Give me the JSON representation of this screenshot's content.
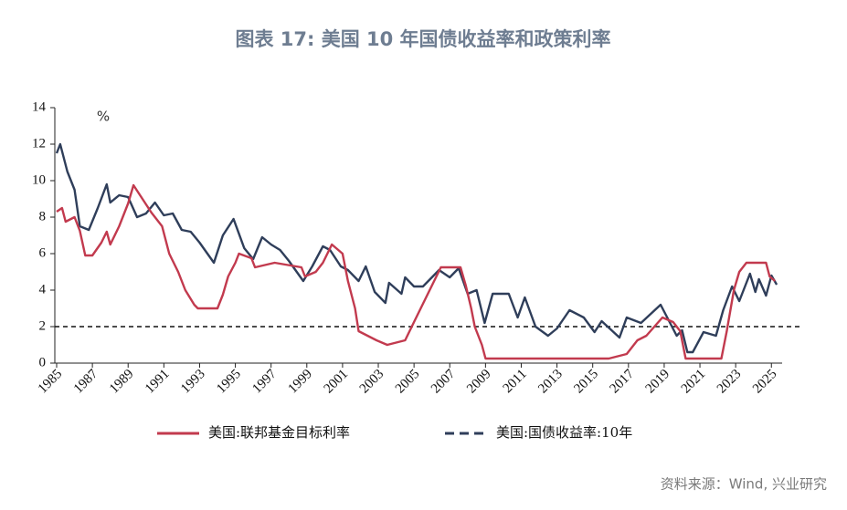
{
  "chart_data": {
    "type": "line",
    "title": "图表 17: 美国 10 年国债收益率和政策利率",
    "y_unit": "%",
    "source": "资料来源：Wind, 兴业研究",
    "xlim": [
      1985,
      2025.6
    ],
    "xticks": [
      1985,
      1987,
      1989,
      1991,
      1993,
      1995,
      1997,
      1999,
      2001,
      2003,
      2005,
      2007,
      2009,
      2011,
      2013,
      2015,
      2017,
      2019,
      2021,
      2023,
      2025
    ],
    "ylim": [
      0,
      14
    ],
    "yticks": [
      0,
      2,
      4,
      6,
      8,
      10,
      12,
      14
    ],
    "reference_line": 2,
    "series": [
      {
        "name": "美国:联邦基金目标利率",
        "color": "#c23a4e",
        "style": "solid",
        "x": [
          1985,
          1985.3,
          1985.5,
          1986,
          1986.3,
          1986.6,
          1987,
          1987.5,
          1987.8,
          1988,
          1988.5,
          1989,
          1989.3,
          1989.8,
          1990.3,
          1990.9,
          1991.3,
          1991.8,
          1992.2,
          1992.7,
          1992.9,
          1994,
          1994.3,
          1994.6,
          1995,
          1995.2,
          1995.9,
          1996.1,
          1997.2,
          1998.7,
          1998.9,
          1999.5,
          1999.9,
          2000.4,
          2001,
          2001.3,
          2001.7,
          2001.9,
          2002.9,
          2003.5,
          2004.5,
          2005,
          2005.5,
          2006,
          2006.5,
          2007.6,
          2007.9,
          2008.2,
          2008.4,
          2008.8,
          2009,
          2015.9,
          2016.9,
          2017.5,
          2018,
          2018.9,
          2019.5,
          2019.9,
          2020.2,
          2022.2,
          2022.5,
          2022.9,
          2023.2,
          2023.6,
          2024.7,
          2024.9,
          2025.2
        ],
        "values": [
          8.3,
          8.5,
          7.75,
          8,
          7.25,
          5.9,
          5.9,
          6.6,
          7.2,
          6.5,
          7.5,
          8.75,
          9.75,
          9,
          8.25,
          7.5,
          6,
          5,
          4,
          3.2,
          3,
          3,
          3.75,
          4.75,
          5.5,
          6,
          5.75,
          5.25,
          5.5,
          5.25,
          4.75,
          5,
          5.5,
          6.5,
          6,
          4.5,
          3,
          1.75,
          1.25,
          1,
          1.25,
          2.25,
          3.25,
          4.25,
          5.25,
          5.25,
          4.25,
          3,
          2,
          1,
          0.25,
          0.25,
          0.5,
          1.25,
          1.5,
          2.5,
          2.25,
          1.75,
          0.25,
          0.25,
          1.75,
          4,
          5,
          5.5,
          5.5,
          4.75,
          4.5
        ]
      },
      {
        "name": "美国:国债收益率:10年",
        "color": "#2f3e5a",
        "style": "dashed",
        "x": [
          1985,
          1985.2,
          1985.6,
          1986,
          1986.3,
          1986.8,
          1987.3,
          1987.8,
          1988,
          1988.5,
          1989,
          1989.5,
          1990,
          1990.5,
          1991,
          1991.5,
          1992,
          1992.5,
          1993,
          1993.8,
          1994.3,
          1994.9,
          1995.5,
          1996,
          1996.5,
          1997,
          1997.5,
          1998,
          1998.8,
          1999.3,
          1999.9,
          2000.3,
          2000.9,
          2001.3,
          2001.9,
          2002.3,
          2002.8,
          2003.4,
          2003.6,
          2004.3,
          2004.5,
          2005,
          2005.5,
          2006.4,
          2007,
          2007.5,
          2008,
          2008.5,
          2008.95,
          2009.4,
          2010.3,
          2010.8,
          2011.2,
          2011.8,
          2012.5,
          2013,
          2013.7,
          2014.5,
          2015.1,
          2015.5,
          2016.5,
          2016.9,
          2017.7,
          2018.8,
          2019.7,
          2020,
          2020.3,
          2020.6,
          2021.2,
          2021.9,
          2022.3,
          2022.8,
          2023.2,
          2023.8,
          2024.1,
          2024.3,
          2024.7,
          2025,
          2025.3
        ],
        "values": [
          11.5,
          12,
          10.5,
          9.5,
          7.5,
          7.3,
          8.5,
          9.8,
          8.8,
          9.2,
          9.1,
          8,
          8.2,
          8.8,
          8.1,
          8.2,
          7.3,
          7.2,
          6.6,
          5.5,
          7,
          7.9,
          6.3,
          5.7,
          6.9,
          6.5,
          6.2,
          5.6,
          4.5,
          5.3,
          6.4,
          6.2,
          5.3,
          5.1,
          4.5,
          5.3,
          3.9,
          3.3,
          4.4,
          3.8,
          4.7,
          4.2,
          4.2,
          5.1,
          4.7,
          5.2,
          3.8,
          4,
          2.2,
          3.8,
          3.8,
          2.5,
          3.6,
          2,
          1.5,
          1.9,
          2.9,
          2.5,
          1.7,
          2.3,
          1.4,
          2.5,
          2.2,
          3.2,
          1.5,
          1.8,
          0.6,
          0.6,
          1.7,
          1.5,
          2.9,
          4.2,
          3.4,
          4.9,
          3.9,
          4.6,
          3.7,
          4.8,
          4.3
        ]
      }
    ]
  }
}
